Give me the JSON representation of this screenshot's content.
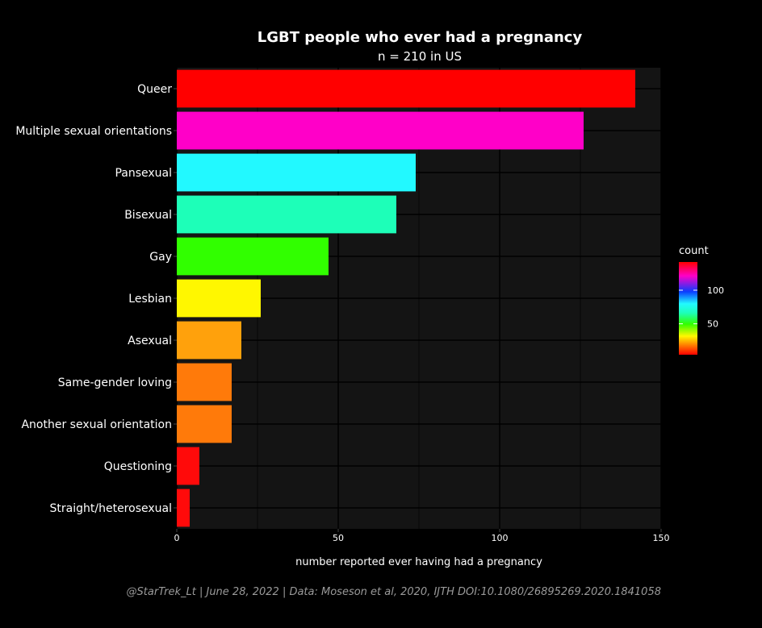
{
  "chart_data": {
    "type": "bar",
    "orientation": "horizontal",
    "title": "LGBT people who ever had a pregnancy",
    "subtitle": "n = 210 in US",
    "xlabel": "number reported ever having had a pregnancy",
    "ylabel": "",
    "xlim": [
      0,
      150
    ],
    "xticks": [
      0,
      50,
      100,
      150
    ],
    "grid": true,
    "categories": [
      "Queer",
      "Multiple sexual orientations",
      "Pansexual",
      "Bisexual",
      "Gay",
      "Lesbian",
      "Asexual",
      "Same-gender loving",
      "Another sexual orientation",
      "Questioning",
      "Straight/heterosexual"
    ],
    "values": [
      142,
      126,
      74,
      68,
      47,
      26,
      20,
      17,
      17,
      7,
      4
    ],
    "colors": [
      "#ff0000",
      "#ff00c8",
      "#22f9ff",
      "#1dffb8",
      "#31ff00",
      "#fff700",
      "#ffa10c",
      "#ff7a0a",
      "#ff7a0a",
      "#ff0a0a",
      "#ff0a0a"
    ],
    "legend": {
      "title": "count",
      "placement": "right",
      "ticks": [
        50,
        100
      ],
      "range": [
        4,
        142
      ]
    },
    "caption": "@StarTrek_Lt | June 28, 2022 | Data: Moseson et al, 2020, IJTH DOI:10.1080/26895269.2020.1841058"
  }
}
